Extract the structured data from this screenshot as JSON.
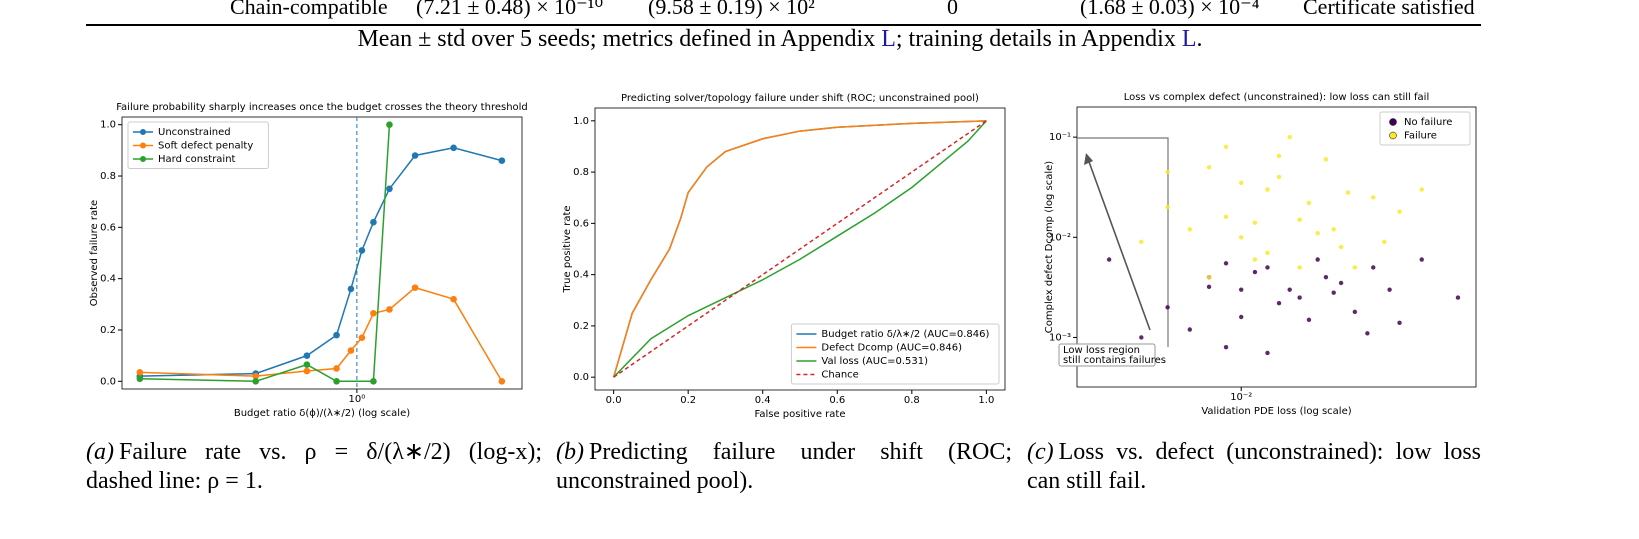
{
  "table_row": [
    "Chain-compatible",
    "(7.21 ± 0.48) × 10⁻¹⁰",
    "(9.58 ± 0.19) × 10²",
    "0",
    "(1.68 ± 0.03) × 10⁻⁴",
    "Certificate satisfied"
  ],
  "caption": {
    "before": "Mean ± std over 5 seeds; metrics defined in Appendix ",
    "link1": "L",
    "middle": "; training details in Appendix ",
    "link2": "L",
    "after": "."
  },
  "subcaptions": [
    {
      "label": "(a)",
      "text": "Failure rate vs. ρ = δ/(λ∗/2) (log-x); dashed line: ρ = 1."
    },
    {
      "label": "(b)",
      "text": "Predicting failure under shift (ROC; unconstrained pool)."
    },
    {
      "label": "(c)",
      "text": "Loss vs. defect (unconstrained): low loss can still fail."
    }
  ],
  "chart_data": [
    {
      "type": "line",
      "title": "Failure probability sharply increases once the budget crosses the theory threshold",
      "x_label": "Budget ratio δ(ϕ)/(λ∗/2) (log scale)",
      "y_label": "Observed failure rate",
      "xlog": true,
      "xlim": [
        0.2,
        3.1
      ],
      "xticks": [
        {
          "value": 1,
          "label": "10⁰"
        }
      ],
      "ylim": [
        -0.03,
        1.03
      ],
      "yticks": [
        {
          "value": 0,
          "label": "0.0"
        },
        {
          "value": 0.2,
          "label": "0.2"
        },
        {
          "value": 0.4,
          "label": "0.4"
        },
        {
          "value": 0.6,
          "label": "0.6"
        },
        {
          "value": 0.8,
          "label": "0.8"
        },
        {
          "value": 1,
          "label": "1.0"
        }
      ],
      "vline": 1,
      "vline_color": "#1f77b4",
      "legend": "upper left",
      "marker": true,
      "series": [
        {
          "name": "Unconstrained",
          "color": "#1f77b4",
          "x": [
            0.226,
            0.5,
            0.71,
            0.87,
            0.96,
            1.035,
            1.12,
            1.25,
            1.49,
            1.94,
            2.7
          ],
          "values": [
            0.02,
            0.03,
            0.1,
            0.18,
            0.36,
            0.51,
            0.62,
            0.75,
            0.88,
            0.91,
            0.86
          ]
        },
        {
          "name": "Soft defect penalty",
          "color": "#ff7f0e",
          "x": [
            0.226,
            0.5,
            0.71,
            0.87,
            0.96,
            1.035,
            1.12,
            1.25,
            1.49,
            1.94,
            2.7
          ],
          "values": [
            0.035,
            0.02,
            0.04,
            0.05,
            0.12,
            0.17,
            0.265,
            0.28,
            0.365,
            0.32,
            0
          ]
        },
        {
          "name": "Hard constraint",
          "color": "#2ca02c",
          "x": [
            0.226,
            0.5,
            0.71,
            0.87,
            1.12,
            1.25
          ],
          "values": [
            0.01,
            0,
            0.065,
            0,
            0,
            1
          ]
        }
      ]
    },
    {
      "type": "line",
      "title": "Predicting solver/topology failure under shift (ROC; unconstrained pool)",
      "x_label": "False positive rate",
      "y_label": "True positive rate",
      "xlim": [
        -0.05,
        1.05
      ],
      "ylim": [
        -0.05,
        1.05
      ],
      "xticks": [
        {
          "value": 0,
          "label": "0.0"
        },
        {
          "value": 0.2,
          "label": "0.2"
        },
        {
          "value": 0.4,
          "label": "0.4"
        },
        {
          "value": 0.6,
          "label": "0.6"
        },
        {
          "value": 0.8,
          "label": "0.8"
        },
        {
          "value": 1,
          "label": "1.0"
        }
      ],
      "yticks": [
        {
          "value": 0,
          "label": "0.0"
        },
        {
          "value": 0.2,
          "label": "0.2"
        },
        {
          "value": 0.4,
          "label": "0.4"
        },
        {
          "value": 0.6,
          "label": "0.6"
        },
        {
          "value": 0.8,
          "label": "0.8"
        },
        {
          "value": 1,
          "label": "1.0"
        }
      ],
      "legend": "lower right",
      "marker": false,
      "series": [
        {
          "name": "Budget ratio δ/λ∗/2 (AUC=0.846)",
          "color": "#1f77b4",
          "x": [
            0,
            0.02,
            0.05,
            0.1,
            0.15,
            0.18,
            0.2,
            0.25,
            0.3,
            0.4,
            0.5,
            0.6,
            0.8,
            1
          ],
          "values": [
            0,
            0.1,
            0.25,
            0.38,
            0.5,
            0.62,
            0.72,
            0.82,
            0.88,
            0.93,
            0.96,
            0.975,
            0.99,
            1
          ]
        },
        {
          "name": "Defect Dcomp (AUC=0.846)",
          "color": "#ff7f0e",
          "x": [
            0,
            0.02,
            0.05,
            0.1,
            0.15,
            0.18,
            0.2,
            0.25,
            0.3,
            0.4,
            0.5,
            0.6,
            0.8,
            1
          ],
          "values": [
            0,
            0.1,
            0.25,
            0.38,
            0.5,
            0.62,
            0.72,
            0.82,
            0.88,
            0.93,
            0.96,
            0.975,
            0.99,
            1
          ]
        },
        {
          "name": "Val loss (AUC=0.531)",
          "color": "#2ca02c",
          "x": [
            0,
            0.1,
            0.2,
            0.3,
            0.4,
            0.5,
            0.6,
            0.7,
            0.8,
            0.9,
            0.95,
            1
          ],
          "values": [
            0,
            0.15,
            0.24,
            0.31,
            0.38,
            0.46,
            0.55,
            0.64,
            0.74,
            0.86,
            0.92,
            1
          ]
        },
        {
          "name": "Chance",
          "color": "#d62728",
          "dash": true,
          "x": [
            0,
            1
          ],
          "values": [
            0,
            1
          ]
        }
      ]
    },
    {
      "type": "scatter",
      "title": "Loss vs complex defect (unconstrained): low loss can still fail",
      "x_label": "Validation PDE loss (log scale)",
      "y_label": "Complex defect Dcomp (log scale)",
      "xlog": true,
      "ylog": true,
      "xlim": [
        0.0032,
        0.051
      ],
      "ylim": [
        0.00032,
        0.2
      ],
      "xticks": [
        {
          "value": 0.01,
          "label": "10⁻²"
        }
      ],
      "yticks": [
        {
          "value": 0.001,
          "label": "10⁻³"
        },
        {
          "value": 0.01,
          "label": "10⁻²"
        },
        {
          "value": 0.1,
          "label": "10⁻¹"
        }
      ],
      "legend": "upper right",
      "annotation": [
        "Low loss region",
        "still contains failures"
      ],
      "series": [
        {
          "name": "No failure",
          "color": "#440154",
          "x": [
            0.004,
            0.006,
            0.008,
            0.01,
            0.012,
            0.015,
            0.018,
            0.022,
            0.028,
            0.035,
            0.007,
            0.009,
            0.011,
            0.013,
            0.016,
            0.02,
            0.025,
            0.005,
            0.012,
            0.014,
            0.017,
            0.03,
            0.045,
            0.009,
            0.019,
            0.01,
            0.008,
            0.024
          ],
          "values": [
            0.006,
            0.002,
            0.004,
            0.003,
            0.005,
            0.0025,
            0.004,
            0.0018,
            0.003,
            0.006,
            0.0012,
            0.0008,
            0.0045,
            0.0022,
            0.0015,
            0.0035,
            0.005,
            0.001,
            0.0007,
            0.003,
            0.006,
            0.0014,
            0.0025,
            0.0055,
            0.0028,
            0.0016,
            0.0032,
            0.0011
          ]
        },
        {
          "name": "Failure",
          "color": "#fde725",
          "x": [
            0.006,
            0.008,
            0.01,
            0.012,
            0.015,
            0.02,
            0.025,
            0.009,
            0.011,
            0.013,
            0.007,
            0.018,
            0.022,
            0.03,
            0.005,
            0.014,
            0.016,
            0.01,
            0.012,
            0.019,
            0.008,
            0.027,
            0.035,
            0.006,
            0.011,
            0.013,
            0.017,
            0.021,
            0.009,
            0.015
          ],
          "values": [
            0.02,
            0.05,
            0.01,
            0.03,
            0.015,
            0.008,
            0.025,
            0.08,
            0.006,
            0.04,
            0.012,
            0.06,
            0.005,
            0.018,
            0.009,
            0.1,
            0.022,
            0.035,
            0.007,
            0.012,
            0.004,
            0.009,
            0.03,
            0.045,
            0.014,
            0.065,
            0.011,
            0.028,
            0.016,
            0.005
          ]
        }
      ]
    }
  ]
}
